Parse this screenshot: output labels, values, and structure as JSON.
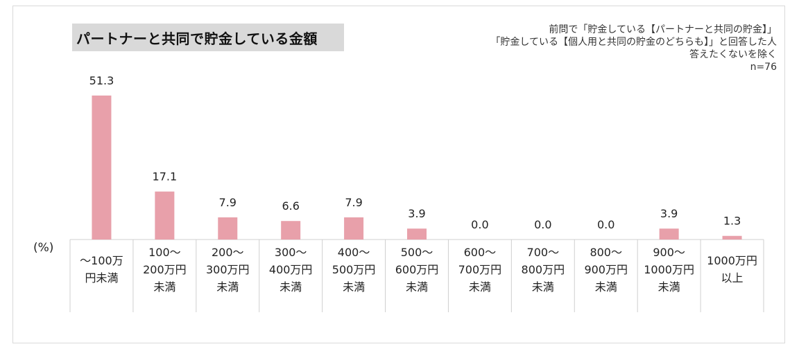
{
  "title": "パートナーと共同で貯金している金額",
  "note_lines": [
    "前問で「貯金している【パートナーと共同の貯金】」",
    "「貯金している【個人用と共同の貯金のどちらも】」と回答した人",
    "答えたくないを除く",
    "n=76"
  ],
  "unit_label": "(%)",
  "chart_data": {
    "type": "bar",
    "title": "パートナーと共同で貯金している金額",
    "categories": [
      [
        "〜100万",
        "円未満"
      ],
      [
        "100〜",
        "200万円",
        "未満"
      ],
      [
        "200〜",
        "300万円",
        "未満"
      ],
      [
        "300〜",
        "400万円",
        "未満"
      ],
      [
        "400〜",
        "500万円",
        "未満"
      ],
      [
        "500〜",
        "600万円",
        "未満"
      ],
      [
        "600〜",
        "700万円",
        "未満"
      ],
      [
        "700〜",
        "800万円",
        "未満"
      ],
      [
        "800〜",
        "900万円",
        "未満"
      ],
      [
        "900〜",
        "1000万円",
        "未満"
      ],
      [
        "1000万円",
        "以上"
      ]
    ],
    "values": [
      51.3,
      17.1,
      7.9,
      6.6,
      7.9,
      3.9,
      0.0,
      0.0,
      0.0,
      3.9,
      1.3
    ],
    "value_labels": [
      "51.3",
      "17.1",
      "7.9",
      "6.6",
      "7.9",
      "3.9",
      "0.0",
      "0.0",
      "0.0",
      "3.9",
      "1.3"
    ],
    "ylabel": "(%)",
    "ylim": [
      0,
      60
    ],
    "bar_color": "#e8a0aa",
    "grid": false,
    "legend": "none"
  }
}
